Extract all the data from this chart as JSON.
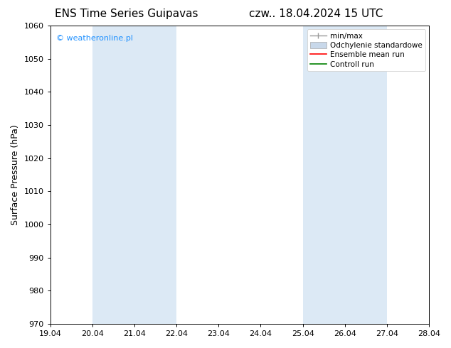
{
  "title_left": "ENS Time Series Guipavas",
  "title_right": "czw.. 18.04.2024 15 UTC",
  "ylabel": "Surface Pressure (hPa)",
  "ylim": [
    970,
    1060
  ],
  "yticks": [
    970,
    980,
    990,
    1000,
    1010,
    1020,
    1030,
    1040,
    1050,
    1060
  ],
  "xlim_start": 0,
  "xlim_end": 9,
  "xtick_labels": [
    "19.04",
    "20.04",
    "21.04",
    "22.04",
    "23.04",
    "24.04",
    "25.04",
    "26.04",
    "27.04",
    "28.04"
  ],
  "shade_bands": [
    {
      "x_start": 1,
      "x_end": 3
    },
    {
      "x_start": 6,
      "x_end": 8
    }
  ],
  "shade_color": "#dce9f5",
  "bg_color": "#ffffff",
  "watermark_text": "© weatheronline.pl",
  "watermark_color": "#1e90ff",
  "legend_items": [
    {
      "label": "min/max",
      "color": "#999999",
      "style": "bar"
    },
    {
      "label": "Odchylenie standardowe",
      "color": "#c8d8ea",
      "style": "fill"
    },
    {
      "label": "Ensemble mean run",
      "color": "#ff0000",
      "style": "line"
    },
    {
      "label": "Controll run",
      "color": "#008000",
      "style": "line"
    }
  ],
  "title_fontsize": 11,
  "tick_fontsize": 8,
  "ylabel_fontsize": 9,
  "legend_fontsize": 7.5
}
